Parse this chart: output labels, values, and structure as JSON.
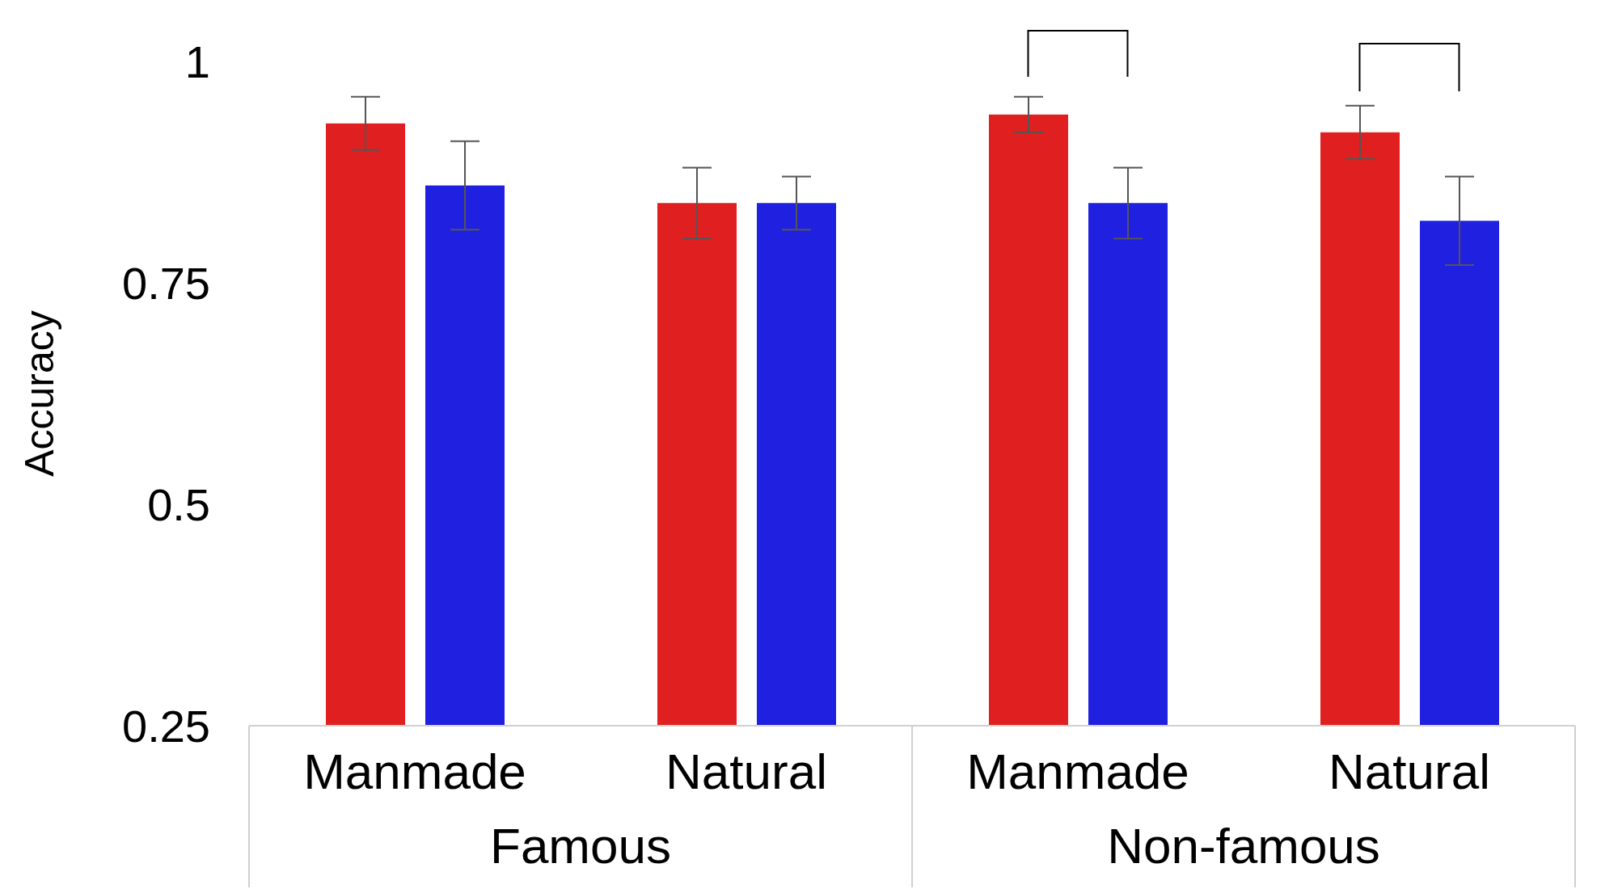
{
  "chart_data": {
    "type": "bar",
    "ylabel": "Accuracy",
    "categories": [
      "Manmade",
      "Natural",
      "Manmade",
      "Natural"
    ],
    "series": [
      {
        "color": "#e02020",
        "values": [
          0.93,
          0.84,
          0.94,
          0.92
        ],
        "errors": [
          0.03,
          0.04,
          0.02,
          0.03
        ]
      },
      {
        "color": "#2020e0",
        "values": [
          0.86,
          0.84,
          0.84,
          0.82
        ],
        "errors": [
          0.05,
          0.03,
          0.04,
          0.05
        ]
      }
    ],
    "annotations": [
      "Famous",
      "Non-famous"
    ],
    "ylim": [
      0.25,
      1
    ],
    "yticks": [
      0.25,
      0.5,
      0.75,
      1
    ]
  }
}
